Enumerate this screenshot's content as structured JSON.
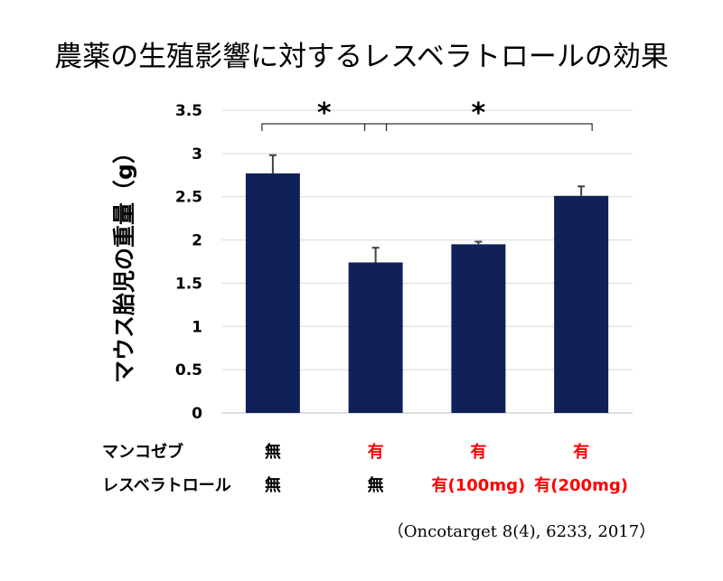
{
  "chart_data": {
    "type": "bar",
    "title": "農薬の生殖影響に対するレスベラトロールの効果",
    "ylabel": "マウス胎児の重量（g）",
    "ylim": [
      0,
      3.5
    ],
    "yticks": [
      "0",
      "0.5",
      "1",
      "1.5",
      "2",
      "2.5",
      "3",
      "3.5"
    ],
    "grid": true,
    "bar_color": "#0f2157",
    "values": [
      2.77,
      1.74,
      1.95,
      2.51
    ],
    "errors": [
      0.21,
      0.17,
      0.03,
      0.11
    ],
    "significance": [
      {
        "from": 0,
        "to": 1,
        "label": "*"
      },
      {
        "from": 1,
        "to": 3,
        "label": "*"
      }
    ]
  },
  "conditions": {
    "rows": [
      {
        "label": "マンコゼブ",
        "cells": [
          {
            "text": "無",
            "color": "#000000"
          },
          {
            "text": "有",
            "color": "#ff0000"
          },
          {
            "text": "有",
            "color": "#ff0000"
          },
          {
            "text": "有",
            "color": "#ff0000"
          }
        ]
      },
      {
        "label": "レスベラトロール",
        "cells": [
          {
            "text": "無",
            "color": "#000000"
          },
          {
            "text": "無",
            "color": "#000000"
          },
          {
            "text": "有(100mg)",
            "color": "#ff0000"
          },
          {
            "text": "有(200mg)",
            "color": "#ff0000"
          }
        ]
      }
    ]
  },
  "source": "（Oncotarget 8(4), 6233, 2017）"
}
